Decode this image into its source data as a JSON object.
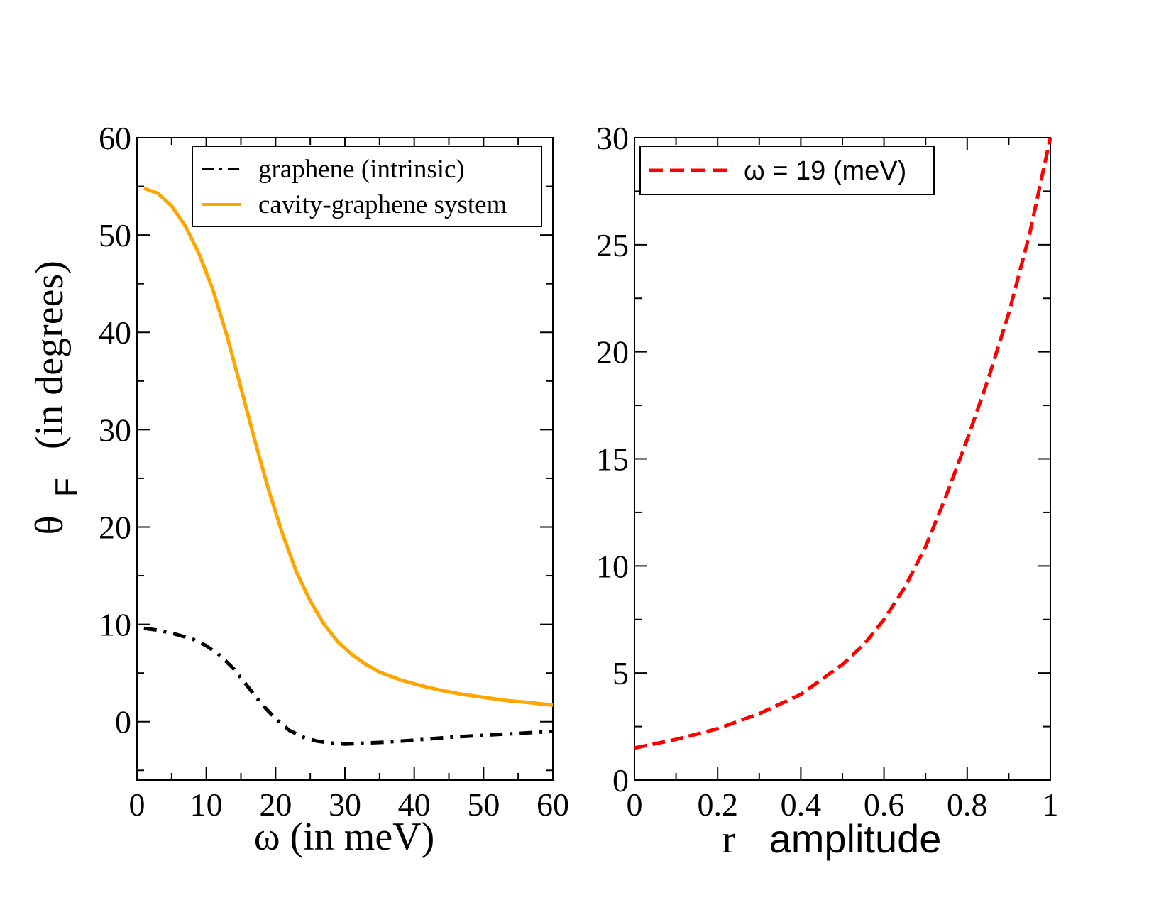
{
  "chart_data": [
    {
      "type": "line",
      "xlabel": "ω (in meV)",
      "ylabel_symbol": "θ",
      "ylabel_subscript": "F",
      "ylabel_rest": "(in degrees)",
      "xlim": [
        0,
        60
      ],
      "ylim": [
        -6,
        60
      ],
      "xticks": [
        0,
        10,
        20,
        30,
        40,
        50,
        60
      ],
      "yticks": [
        0,
        10,
        20,
        30,
        40,
        50,
        60
      ],
      "xtick_labels": [
        "0",
        "10",
        "20",
        "30",
        "40",
        "50",
        "60"
      ],
      "ytick_labels": [
        "0",
        "10",
        "20",
        "30",
        "40",
        "50",
        "60"
      ],
      "legend_position": "top-right",
      "series": [
        {
          "name": "graphene (intrinsic)",
          "color": "#000000",
          "style": "dash-dot",
          "x": [
            1,
            3,
            5,
            8,
            10,
            12,
            14,
            16,
            18,
            20,
            22,
            24,
            26,
            28,
            30,
            33,
            36,
            40,
            45,
            50,
            55,
            60
          ],
          "y": [
            9.6,
            9.4,
            9.1,
            8.5,
            7.8,
            6.8,
            5.4,
            3.6,
            1.8,
            0.3,
            -0.9,
            -1.6,
            -2.0,
            -2.2,
            -2.3,
            -2.2,
            -2.1,
            -1.9,
            -1.6,
            -1.4,
            -1.2,
            -1.0
          ]
        },
        {
          "name": "cavity-graphene system",
          "color": "#ffa500",
          "style": "solid",
          "x": [
            1,
            3,
            5,
            7,
            9,
            11,
            13,
            15,
            17,
            19,
            21,
            23,
            25,
            27,
            29,
            31,
            33,
            35,
            38,
            41,
            44,
            47,
            50,
            53,
            56,
            60
          ],
          "y": [
            54.8,
            54.3,
            53.0,
            50.9,
            48.0,
            44.3,
            39.6,
            34.3,
            28.9,
            23.8,
            19.3,
            15.4,
            12.4,
            10.0,
            8.2,
            6.9,
            5.9,
            5.1,
            4.3,
            3.7,
            3.2,
            2.8,
            2.5,
            2.2,
            2.0,
            1.7
          ]
        }
      ]
    },
    {
      "type": "line",
      "xlabel_r": "r",
      "xlabel_rest": "amplitude",
      "xlim": [
        0,
        1
      ],
      "ylim": [
        0,
        30
      ],
      "xticks": [
        0,
        0.2,
        0.4,
        0.6,
        0.8,
        1
      ],
      "yticks": [
        0,
        5,
        10,
        15,
        20,
        25,
        30
      ],
      "xtick_labels": [
        "0",
        "0.2",
        "0.4",
        "0.6",
        "0.8",
        "1"
      ],
      "ytick_labels": [
        "0",
        "5",
        "10",
        "15",
        "20",
        "25",
        "30"
      ],
      "legend_position": "top-left",
      "series": [
        {
          "name": "ω = 19 (meV)",
          "color": "#ff0000",
          "style": "dashed",
          "x": [
            0,
            0.1,
            0.2,
            0.3,
            0.4,
            0.5,
            0.55,
            0.6,
            0.65,
            0.7,
            0.75,
            0.8,
            0.85,
            0.9,
            0.95,
            1.0
          ],
          "y": [
            1.5,
            1.9,
            2.4,
            3.1,
            4.0,
            5.4,
            6.3,
            7.5,
            9.0,
            10.9,
            13.3,
            15.9,
            18.7,
            21.8,
            25.5,
            30.0
          ]
        }
      ]
    }
  ]
}
